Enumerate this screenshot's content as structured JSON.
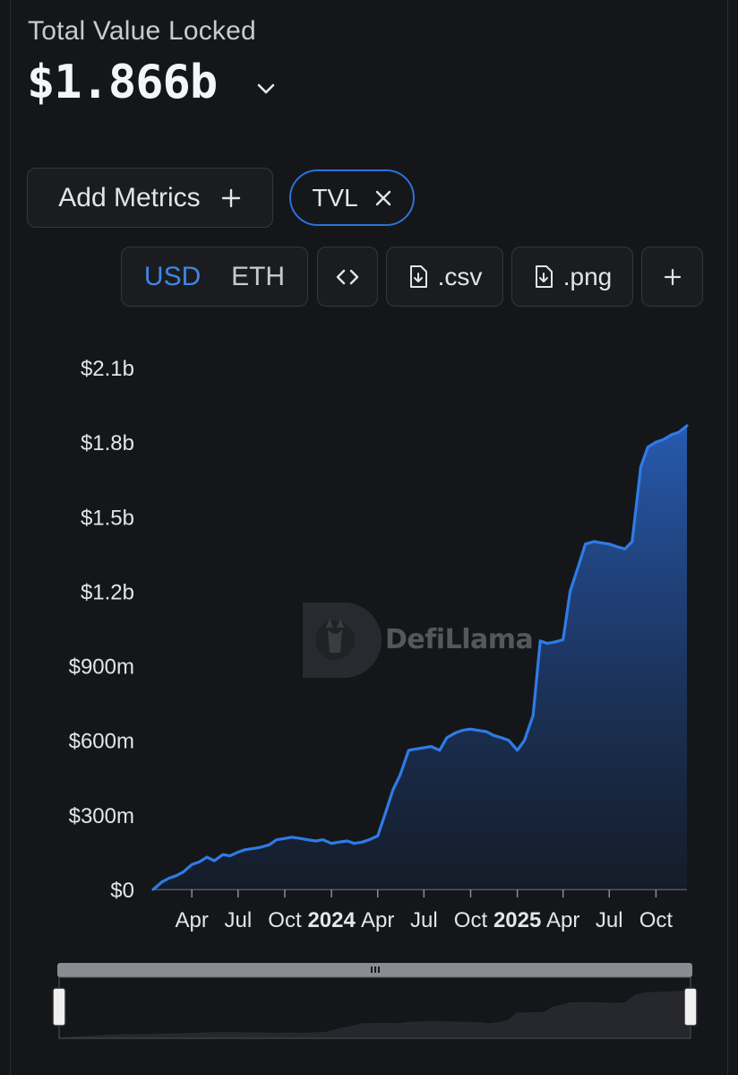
{
  "header": {
    "label": "Total Value Locked",
    "value": "$1.866b"
  },
  "controls": {
    "add_metrics_label": "Add Metrics",
    "tvl_pill_label": "TVL",
    "currency_options": [
      "USD",
      "ETH"
    ],
    "currency_selected": "USD",
    "csv_label": ".csv",
    "png_label": ".png"
  },
  "watermark": "DefiLlama",
  "colors": {
    "background": "#151619",
    "accent": "#2c72d9",
    "line": "#2f7be6"
  },
  "chart_data": {
    "type": "area",
    "series": [
      {
        "x": [
          "2023-01-15",
          "2023-02-01",
          "2023-02-15",
          "2023-03-01",
          "2023-03-15",
          "2023-04-01",
          "2023-04-15",
          "2023-05-01",
          "2023-05-15",
          "2023-06-01",
          "2023-06-15",
          "2023-07-01",
          "2023-07-15",
          "2023-08-01",
          "2023-08-15",
          "2023-09-01",
          "2023-09-15",
          "2023-10-01",
          "2023-10-15",
          "2023-11-01",
          "2023-11-15",
          "2023-12-01",
          "2023-12-15",
          "2024-01-01",
          "2024-01-15",
          "2024-02-01",
          "2024-02-15",
          "2024-03-01",
          "2024-03-15",
          "2024-04-01",
          "2024-04-15",
          "2024-05-01",
          "2024-05-15",
          "2024-06-01",
          "2024-06-15",
          "2024-07-01",
          "2024-07-15",
          "2024-08-01",
          "2024-08-15",
          "2024-09-01",
          "2024-09-15",
          "2024-10-01",
          "2024-10-15",
          "2024-11-01",
          "2024-11-15",
          "2024-12-01",
          "2024-12-15",
          "2025-01-01",
          "2025-01-15",
          "2025-02-01",
          "2025-02-15",
          "2025-03-01",
          "2025-03-15",
          "2025-04-01",
          "2025-04-15",
          "2025-05-01",
          "2025-05-15",
          "2025-06-01",
          "2025-06-15",
          "2025-07-01",
          "2025-07-15",
          "2025-08-01",
          "2025-08-15",
          "2025-09-01",
          "2025-09-15",
          "2025-10-01",
          "2025-10-15",
          "2025-11-01",
          "2025-11-15",
          "2025-12-01"
        ],
        "values": [
          0,
          30,
          45,
          55,
          70,
          100,
          110,
          130,
          115,
          140,
          135,
          150,
          160,
          165,
          170,
          180,
          200,
          205,
          210,
          205,
          200,
          195,
          200,
          185,
          190,
          195,
          185,
          190,
          200,
          215,
          300,
          400,
          460,
          560,
          565,
          570,
          575,
          560,
          610,
          630,
          640,
          645,
          640,
          635,
          620,
          610,
          600,
          560,
          600,
          700,
          1000,
          990,
          995,
          1005,
          1200,
          1300,
          1390,
          1400,
          1395,
          1390,
          1380,
          1370,
          1400,
          1700,
          1780,
          1800,
          1810,
          1830,
          1840,
          1866
        ]
      }
    ],
    "y_ticks": [
      "$0",
      "$300m",
      "$600m",
      "$900m",
      "$1.2b",
      "$1.5b",
      "$1.8b",
      "$2.1b"
    ],
    "x_ticks": [
      {
        "label": "Apr",
        "date": "2023-04-01",
        "bold": false
      },
      {
        "label": "Jul",
        "date": "2023-07-01",
        "bold": false
      },
      {
        "label": "Oct",
        "date": "2023-10-01",
        "bold": false
      },
      {
        "label": "2024",
        "date": "2024-01-01",
        "bold": true
      },
      {
        "label": "Apr",
        "date": "2024-04-01",
        "bold": false
      },
      {
        "label": "Jul",
        "date": "2024-07-01",
        "bold": false
      },
      {
        "label": "Oct",
        "date": "2024-10-01",
        "bold": false
      },
      {
        "label": "2025",
        "date": "2025-01-01",
        "bold": true
      },
      {
        "label": "Apr",
        "date": "2025-04-01",
        "bold": false
      },
      {
        "label": "Jul",
        "date": "2025-07-01",
        "bold": false
      },
      {
        "label": "Oct",
        "date": "2025-10-01",
        "bold": false
      }
    ],
    "xlim": [
      "2023-01-13",
      "2025-12-01"
    ],
    "ylim": [
      0,
      2100000000
    ],
    "grid": false,
    "title": "",
    "xlabel": "",
    "ylabel": ""
  }
}
